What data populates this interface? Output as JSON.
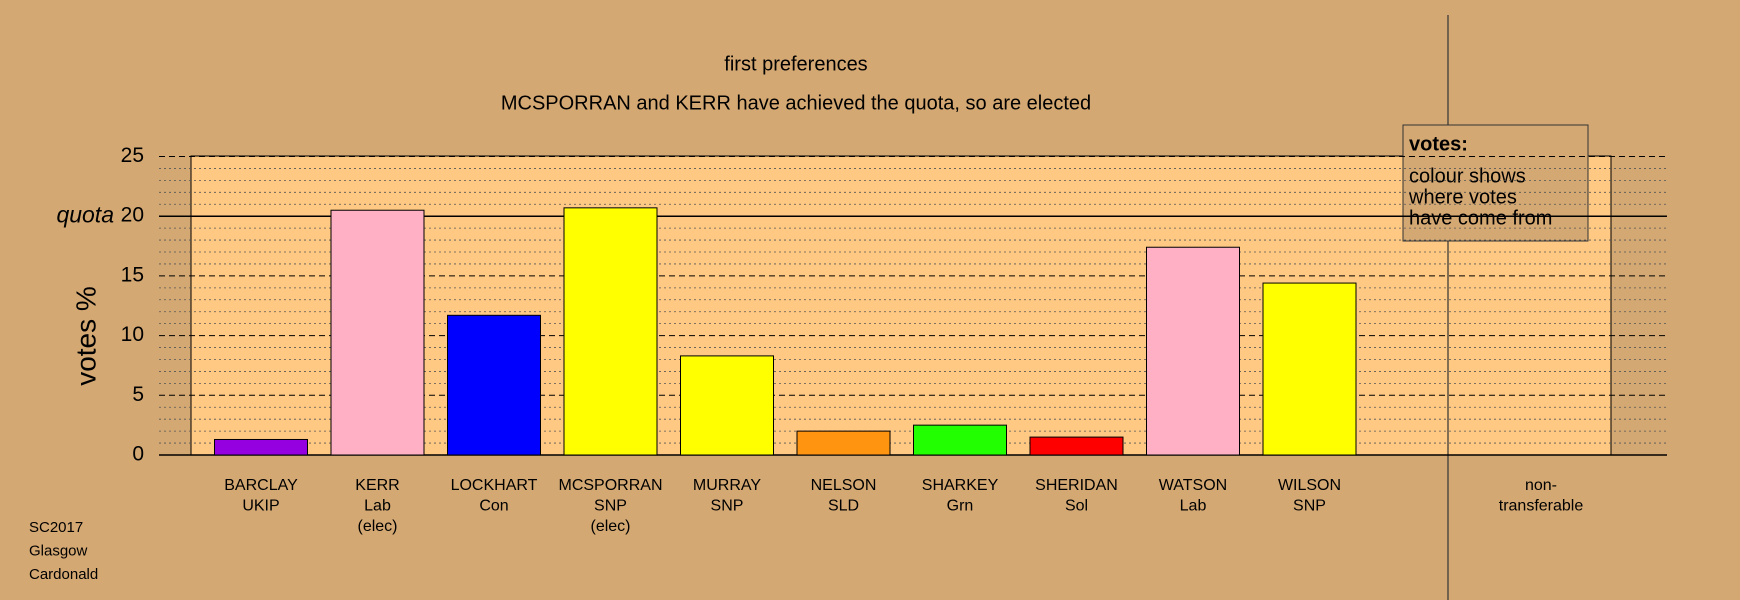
{
  "chart_data": {
    "type": "bar",
    "title": "first preferences",
    "subtitle": "MCSPORRAN and KERR have achieved the quota, so are elected",
    "ylabel": "votes %",
    "categories": [
      [
        "BARCLAY",
        "UKIP"
      ],
      [
        "KERR",
        "Lab",
        "(elec)"
      ],
      [
        "LOCKHART",
        "Con"
      ],
      [
        "MCSPORRAN",
        "SNP",
        "(elec)"
      ],
      [
        "MURRAY",
        "SNP"
      ],
      [
        "NELSON",
        "SLD"
      ],
      [
        "SHARKEY",
        "Grn"
      ],
      [
        "SHERIDAN",
        "Sol"
      ],
      [
        "WATSON",
        "Lab"
      ],
      [
        "WILSON",
        "SNP"
      ],
      [
        "non-",
        "transferable"
      ]
    ],
    "values": [
      1.3,
      20.5,
      11.7,
      20.7,
      8.3,
      2.0,
      2.5,
      1.5,
      17.4,
      14.4,
      null
    ],
    "colors": [
      "#9400e0",
      "#ffb0c4",
      "#0000ff",
      "#ffff00",
      "#ffff00",
      "#ff9410",
      "#22ff00",
      "#ff0000",
      "#ffb0c4",
      "#ffff00",
      null
    ],
    "ylim": [
      0,
      25
    ],
    "yticks": [
      0,
      5,
      10,
      15,
      20,
      25
    ],
    "minor_yticks": [
      1,
      2,
      3,
      4,
      6,
      7,
      8,
      9,
      11,
      12,
      13,
      14,
      16,
      17,
      18,
      19,
      21,
      22,
      23,
      24
    ],
    "quota": {
      "value": 20,
      "label": "quota"
    },
    "legend": {
      "title": "votes:",
      "lines": [
        "colour shows",
        "where votes",
        "have come from"
      ]
    },
    "footer": [
      "SC2017",
      "Glasgow",
      "Cardonald"
    ]
  }
}
